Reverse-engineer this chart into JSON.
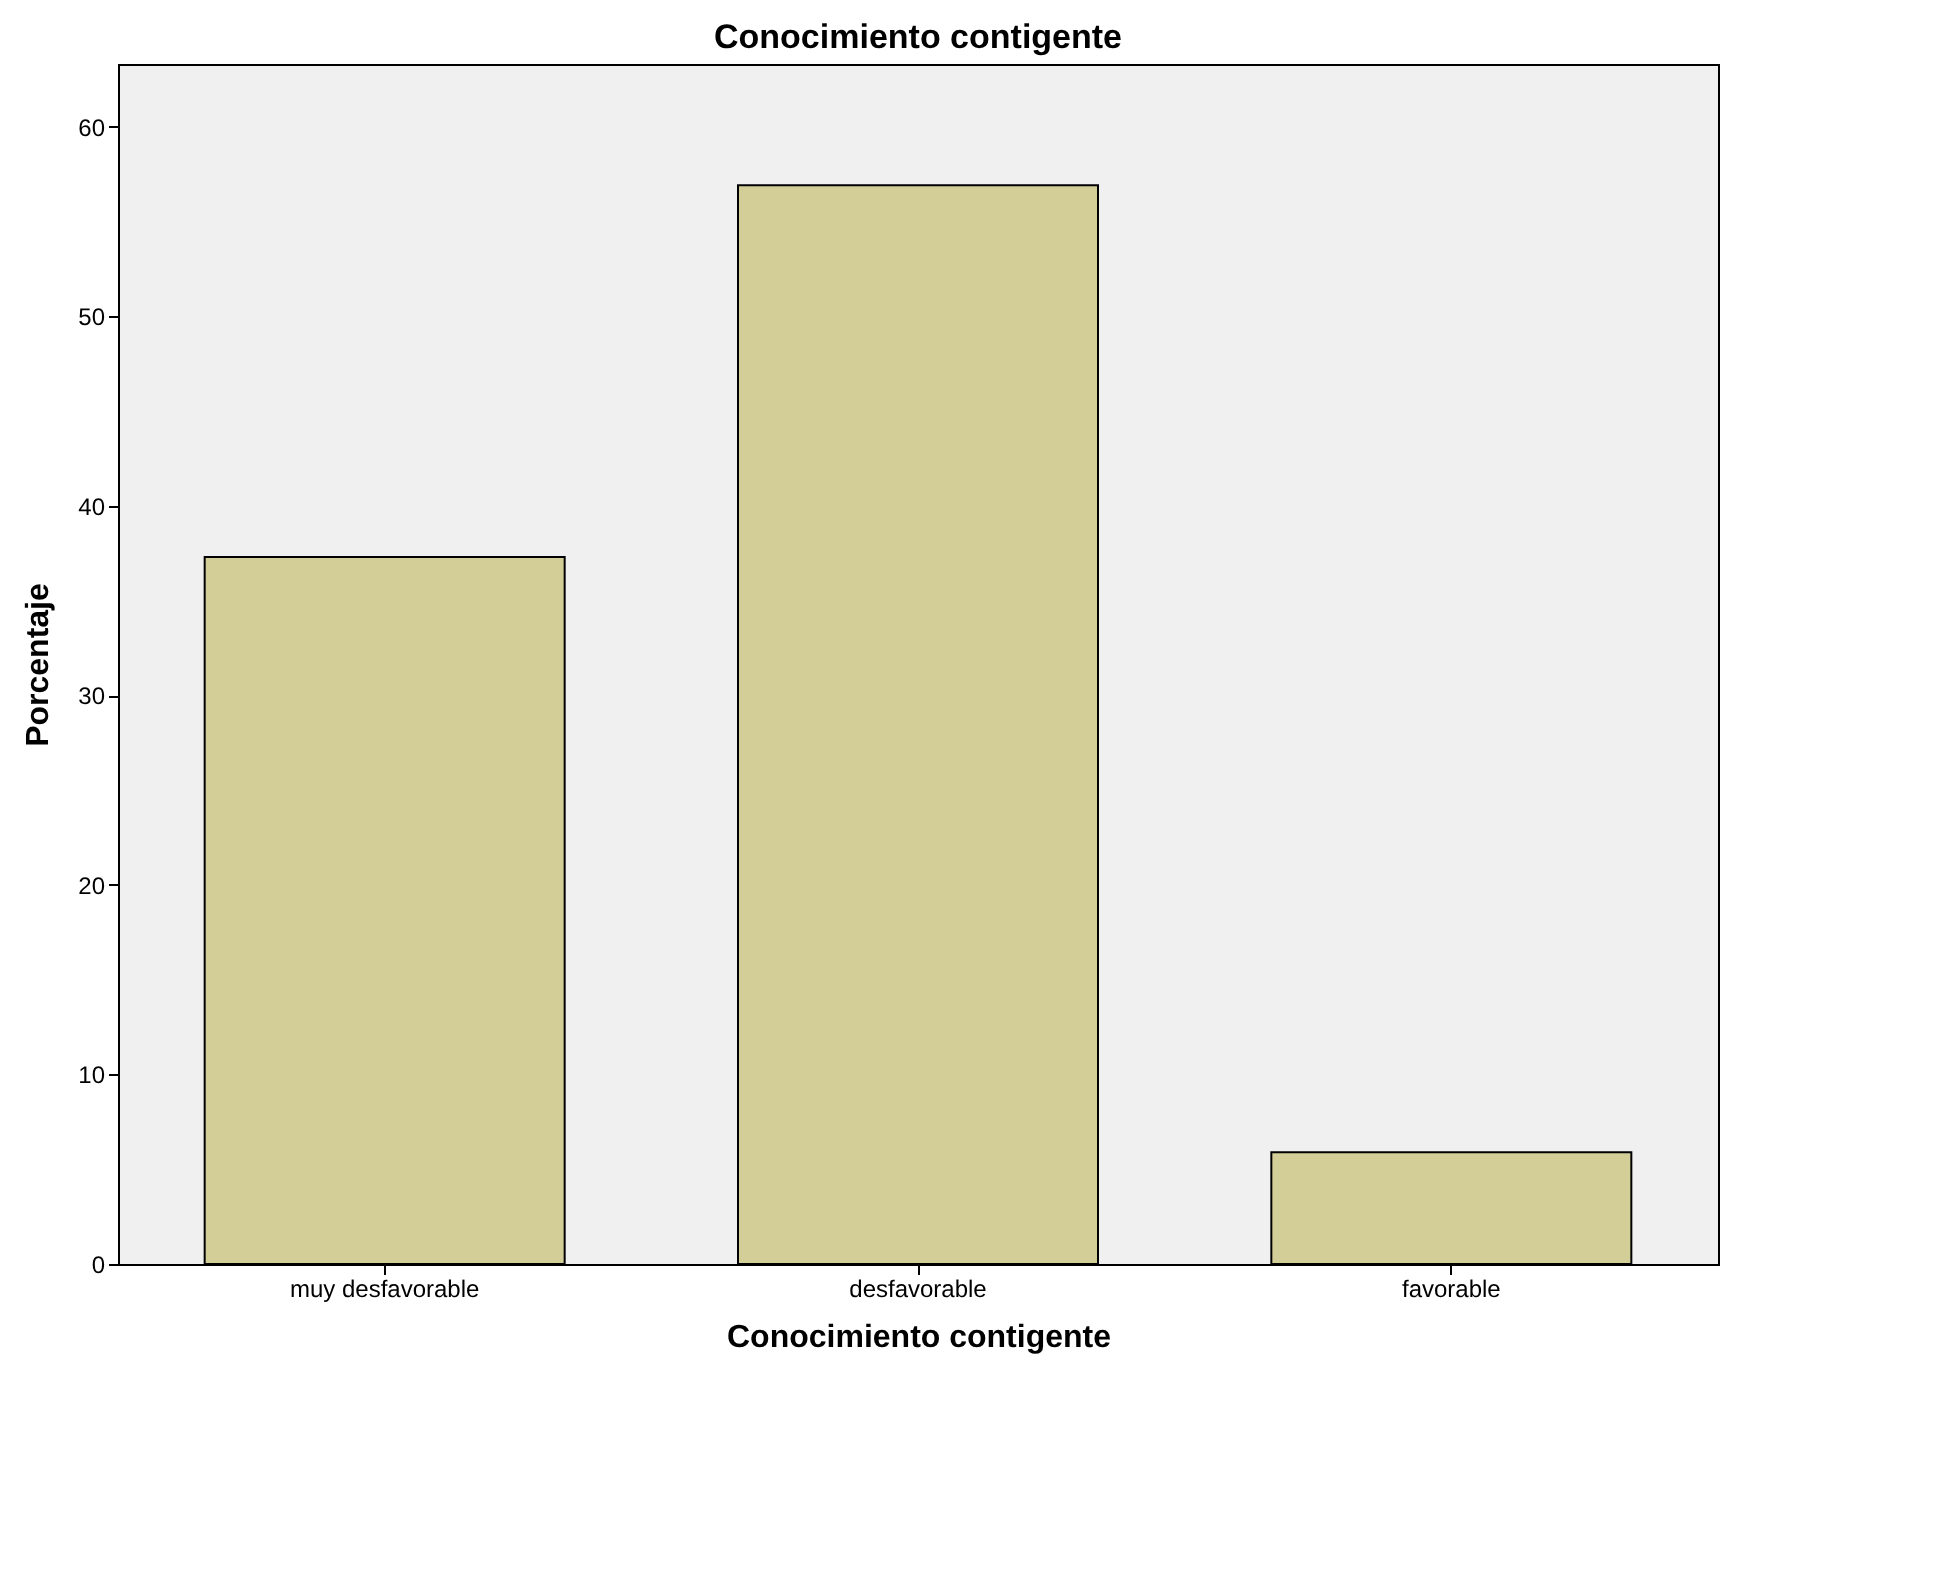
{
  "chart_data": {
    "type": "bar",
    "title": "Conocimiento contigente",
    "xlabel": "Conocimiento contigente",
    "ylabel": "Porcentaje",
    "categories": [
      "muy desfavorable",
      "desfavorable",
      "favorable"
    ],
    "values": [
      37.3,
      56.9,
      5.9
    ],
    "color": "#d3ce97",
    "ylim": [
      0,
      63.3
    ],
    "yticks": [
      0,
      10,
      20,
      30,
      40,
      50,
      60
    ],
    "grid": false
  }
}
